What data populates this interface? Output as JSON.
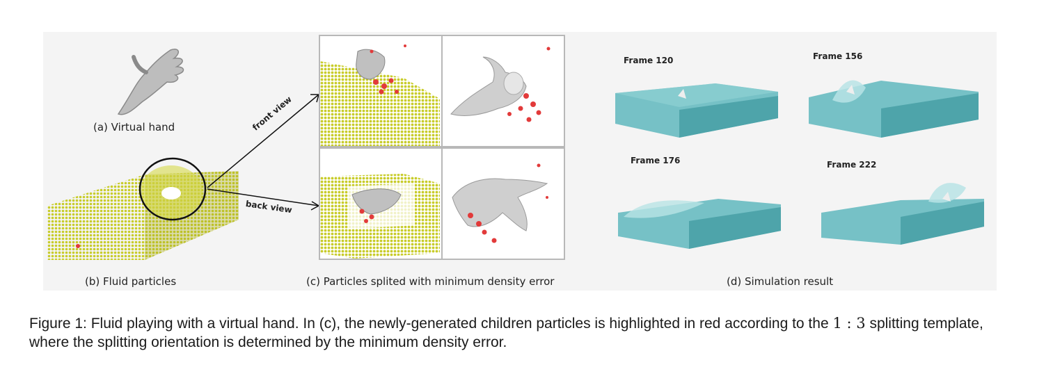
{
  "figure": {
    "label_a": "(a) Virtual hand",
    "label_b": "(b) Fluid particles",
    "label_c": "(c) Particles splited with minimum density error",
    "label_d": "(d) Simulation result",
    "arrow_front": "front view",
    "arrow_back": "back view",
    "frames": [
      "Frame 120",
      "Frame 156",
      "Frame 176",
      "Frame 222"
    ],
    "colors": {
      "particle_yellow": "#c8cc2a",
      "highlight_red": "#e23a3a",
      "fluid_teal": "#5fb7bd",
      "hand_gray": "#c9c9c9"
    }
  },
  "caption": {
    "prefix": "Figure 1: Fluid playing with a virtual hand. In (c), the newly-generated children particles is highlighted in red according to the ",
    "math": "1 : 3",
    "suffix": " splitting template, where the splitting orientation is determined by the minimum density error."
  }
}
